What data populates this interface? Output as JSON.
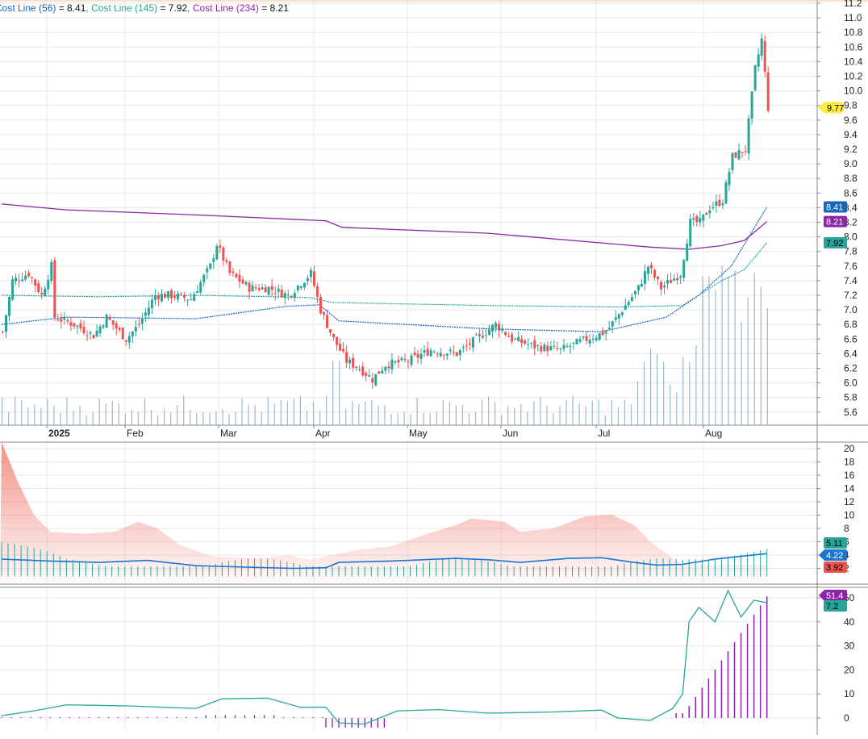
{
  "colors": {
    "up": "#26a69a",
    "down": "#ef5350",
    "cost56": "#1565c0",
    "cost145": "#26a69a",
    "cost234": "#8e24aa",
    "volume": "#9fb9c9",
    "grid": "#e7e7e7",
    "ind_blue": "#1976d2",
    "ind_red_fill": "#f28b82",
    "ind_bars": "#26a69a",
    "panel3_line": "#26a69a",
    "panel3_bars": "#8e24aa",
    "last_price_bg": "#ffeb3b"
  },
  "legend": [
    {
      "label": "Cost Line (56)",
      "sep": " = ",
      "value": "8.41",
      "color": "#1565c0"
    },
    {
      "label": "Cost Line (145)",
      "sep": " = ",
      "value": "7.92",
      "color": "#26a69a"
    },
    {
      "label": "Cost Line (234)",
      "sep": " = ",
      "value": "8.21",
      "color": "#8e24aa"
    }
  ],
  "chart_data": [
    {
      "type": "candlestick",
      "y_ticks": [
        "11.2",
        "11.0",
        "10.8",
        "10.6",
        "10.4",
        "10.2",
        "10.0",
        "9.8",
        "9.6",
        "9.4",
        "9.2",
        "9.0",
        "8.8",
        "8.6",
        "8.4",
        "8.2",
        "8.0",
        "7.8",
        "7.6",
        "7.4",
        "7.2",
        "7.0",
        "6.8",
        "6.6",
        "6.4",
        "6.2",
        "6.0",
        "5.8",
        "5.6"
      ],
      "ylim": [
        5.5,
        11.2
      ],
      "x_labels": [
        "2025",
        "Feb",
        "Mar",
        "Apr",
        "May",
        "Jun",
        "Jul",
        "Aug"
      ],
      "last_price": "9.77",
      "badges": [
        {
          "value": "8.41",
          "bg": "#1565c0",
          "fg": "#ffffff"
        },
        {
          "value": "8.21",
          "bg": "#8e24aa",
          "fg": "#ffffff"
        },
        {
          "value": "7.92",
          "bg": "#26a69a",
          "fg": "#000000"
        }
      ]
    },
    {
      "type": "area",
      "y_ticks": [
        "20",
        "18",
        "16",
        "14",
        "12",
        "10",
        "8",
        "6",
        "4",
        "2"
      ],
      "ylim": [
        0,
        21
      ],
      "badges": [
        {
          "value": "5.11",
          "bg": "#26a69a",
          "fg": "#000000"
        },
        {
          "value": "4.22",
          "bg": "#1976d2",
          "fg": "#ffffff"
        },
        {
          "value": "3.92",
          "bg": "#ef5350",
          "fg": "#000000"
        }
      ]
    },
    {
      "type": "line",
      "y_ticks": [
        "50",
        "40",
        "30",
        "20",
        "10",
        "0"
      ],
      "ylim": [
        -4,
        54
      ],
      "badges": [
        {
          "value": "51.4",
          "bg": "#8e24aa",
          "fg": "#ffffff"
        },
        {
          "value": "7.2",
          "bg": "#26a69a",
          "fg": "#000000"
        }
      ]
    }
  ]
}
